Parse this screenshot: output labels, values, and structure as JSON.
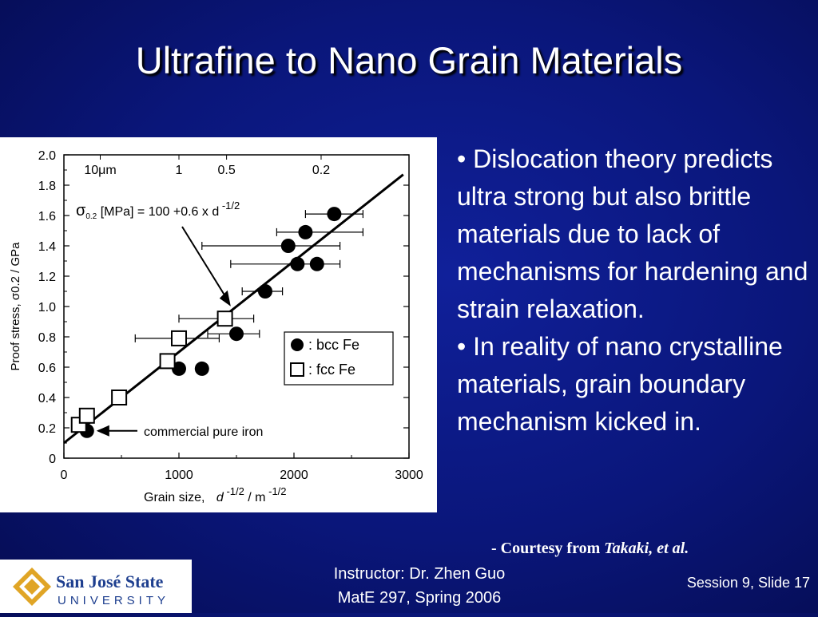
{
  "slide": {
    "title": "Ultrafine to Nano Grain Materials",
    "bullets": [
      "• Dislocation theory predicts ultra strong but also brittle materials due to lack of mechanisms for hardening and strain relaxation.",
      "• In reality of nano crystalline materials, grain boundary mechanism kicked in."
    ],
    "courtesy_prefix": "- Courtesy from ",
    "courtesy_authors": "Takaki, et al.",
    "footer": {
      "instructor_line1": "Instructor: Dr. Zhen Guo",
      "instructor_line2": "MatE 297, Spring 2006",
      "session": "Session 9, Slide 17"
    },
    "logo": {
      "line1": "San José State",
      "line2": "UNIVERSITY"
    }
  },
  "chart_data": {
    "type": "scatter",
    "xlabel": "Grain size,",
    "xlabel_var": "d",
    "xlabel_exp": "-1/2",
    "xlabel_unit": "/ m",
    "xlabel_unit_exp": "-1/2",
    "ylabel": "Proof stress,  σ0.2 / GPa",
    "xlim": [
      0,
      3000
    ],
    "ylim": [
      0,
      2.0
    ],
    "x_ticks": [
      "0",
      "1000",
      "2000",
      "3000"
    ],
    "y_ticks": [
      "0",
      "0.2",
      "0.4",
      "0.6",
      "0.8",
      "1.0",
      "1.2",
      "1.4",
      "1.6",
      "1.8",
      "2.0"
    ],
    "top_axis_labels": [
      {
        "label": "10μm",
        "value": 316
      },
      {
        "label": "1",
        "value": 1000
      },
      {
        "label": "0.5",
        "value": 1414
      },
      {
        "label": "0.2",
        "value": 2236
      }
    ],
    "equation": {
      "sigma": "σ",
      "sub": "0.2",
      "text": " [MPa] = 100 +0.6 x d",
      "exp": "-1/2"
    },
    "fit_line": {
      "intercept": 0.1,
      "slope": 0.0006
    },
    "annotation": "commercial pure iron",
    "legend": [
      {
        "marker": "filled-circle",
        "label": ": bcc Fe"
      },
      {
        "marker": "open-square",
        "label": ": fcc  Fe"
      }
    ],
    "series": [
      {
        "name": "bcc Fe",
        "marker": "filled-circle",
        "points": [
          {
            "x": 200,
            "y": 0.18
          },
          {
            "x": 1000,
            "y": 0.59
          },
          {
            "x": 1200,
            "y": 0.59
          },
          {
            "x": 1500,
            "y": 0.82,
            "xerr": [
              1250,
              1700
            ]
          },
          {
            "x": 1750,
            "y": 1.1,
            "xerr": [
              1550,
              1900
            ]
          },
          {
            "x": 1950,
            "y": 1.4,
            "xerr": [
              1200,
              2400
            ]
          },
          {
            "x": 2030,
            "y": 1.28,
            "xerr": [
              1450,
              2400
            ]
          },
          {
            "x": 2100,
            "y": 1.49,
            "xerr": [
              1850,
              2600
            ]
          },
          {
            "x": 2200,
            "y": 1.28
          },
          {
            "x": 2350,
            "y": 1.61,
            "xerr": [
              2100,
              2600
            ]
          }
        ]
      },
      {
        "name": "fcc Fe",
        "marker": "open-square",
        "points": [
          {
            "x": 130,
            "y": 0.22
          },
          {
            "x": 200,
            "y": 0.28
          },
          {
            "x": 480,
            "y": 0.4
          },
          {
            "x": 900,
            "y": 0.64
          },
          {
            "x": 1000,
            "y": 0.79,
            "xerr": [
              620,
              1350
            ]
          },
          {
            "x": 1400,
            "y": 0.92,
            "xerr": [
              1000,
              1650
            ]
          }
        ]
      }
    ]
  },
  "colors": {
    "background": "#0a167a",
    "text": "#ffffff",
    "logo_gold": "#e0a526",
    "logo_blue": "#1e3f8f"
  }
}
